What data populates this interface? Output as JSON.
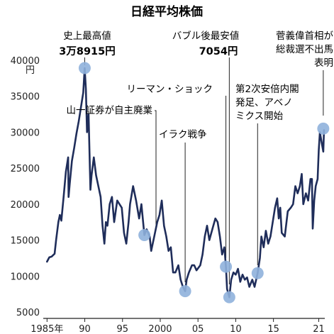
{
  "chart_data": {
    "type": "line",
    "title": "日経平均株価",
    "ylabel": "円",
    "ylim": [
      5000,
      40000
    ],
    "xlim": [
      1984.5,
      2021.8
    ],
    "yticks": [
      5000,
      10000,
      15000,
      20000,
      25000,
      30000,
      35000,
      40000
    ],
    "xticks": [
      {
        "x": 1985,
        "label": "1985年"
      },
      {
        "x": 1990,
        "label": "90"
      },
      {
        "x": 1995,
        "label": "95"
      },
      {
        "x": 2000,
        "label": "2000"
      },
      {
        "x": 2005,
        "label": "05"
      },
      {
        "x": 2010,
        "label": "10"
      },
      {
        "x": 2015,
        "label": "15"
      },
      {
        "x": 2021,
        "label": "21"
      }
    ],
    "grid": false,
    "line_color": "#1f2d5a",
    "marker_color": "#8fb1dc",
    "series": [
      {
        "points": [
          [
            1985.0,
            12000
          ],
          [
            1985.3,
            12600
          ],
          [
            1985.6,
            12700
          ],
          [
            1986.0,
            13100
          ],
          [
            1986.2,
            15000
          ],
          [
            1986.5,
            17500
          ],
          [
            1986.7,
            18500
          ],
          [
            1986.9,
            17700
          ],
          [
            1987.2,
            21000
          ],
          [
            1987.5,
            24500
          ],
          [
            1987.8,
            26500
          ],
          [
            1987.85,
            21000
          ],
          [
            1988.0,
            22800
          ],
          [
            1988.3,
            26000
          ],
          [
            1988.6,
            27800
          ],
          [
            1988.9,
            29800
          ],
          [
            1989.2,
            31500
          ],
          [
            1989.5,
            33500
          ],
          [
            1989.8,
            35500
          ],
          [
            1989.99,
            38915
          ],
          [
            1990.15,
            36000
          ],
          [
            1990.3,
            30000
          ],
          [
            1990.5,
            32500
          ],
          [
            1990.75,
            22000
          ],
          [
            1990.9,
            24000
          ],
          [
            1991.2,
            26500
          ],
          [
            1991.5,
            24000
          ],
          [
            1991.8,
            22500
          ],
          [
            1992.1,
            21000
          ],
          [
            1992.35,
            17000
          ],
          [
            1992.6,
            14500
          ],
          [
            1992.8,
            17500
          ],
          [
            1993.0,
            17000
          ],
          [
            1993.3,
            20000
          ],
          [
            1993.6,
            21000
          ],
          [
            1993.9,
            17500
          ],
          [
            1994.3,
            20500
          ],
          [
            1994.6,
            20000
          ],
          [
            1994.9,
            19500
          ],
          [
            1995.2,
            16000
          ],
          [
            1995.5,
            14500
          ],
          [
            1995.8,
            17500
          ],
          [
            1996.0,
            20000
          ],
          [
            1996.4,
            22500
          ],
          [
            1996.8,
            20500
          ],
          [
            1997.2,
            18000
          ],
          [
            1997.5,
            20000
          ],
          [
            1997.9,
            15700
          ],
          [
            1998.2,
            16500
          ],
          [
            1998.6,
            15500
          ],
          [
            1998.8,
            13500
          ],
          [
            1999.2,
            15500
          ],
          [
            1999.6,
            17500
          ],
          [
            1999.9,
            18500
          ],
          [
            2000.2,
            20500
          ],
          [
            2000.5,
            17000
          ],
          [
            2000.8,
            15500
          ],
          [
            2001.1,
            13500
          ],
          [
            2001.4,
            14000
          ],
          [
            2001.7,
            10500
          ],
          [
            2002.0,
            10500
          ],
          [
            2002.4,
            11500
          ],
          [
            2002.7,
            9500
          ],
          [
            2003.0,
            8500
          ],
          [
            2003.3,
            7900
          ],
          [
            2003.5,
            9500
          ],
          [
            2003.8,
            10500
          ],
          [
            2004.2,
            11500
          ],
          [
            2004.5,
            11500
          ],
          [
            2004.8,
            10800
          ],
          [
            2005.3,
            11500
          ],
          [
            2005.6,
            13000
          ],
          [
            2005.9,
            15500
          ],
          [
            2006.2,
            17000
          ],
          [
            2006.5,
            15000
          ],
          [
            2006.9,
            16500
          ],
          [
            2007.3,
            18000
          ],
          [
            2007.6,
            17500
          ],
          [
            2007.9,
            15500
          ],
          [
            2008.2,
            13000
          ],
          [
            2008.5,
            14000
          ],
          [
            2008.7,
            11300
          ],
          [
            2008.85,
            8200
          ],
          [
            2009.15,
            7054
          ],
          [
            2009.4,
            9500
          ],
          [
            2009.7,
            10500
          ],
          [
            2010.0,
            10200
          ],
          [
            2010.3,
            11000
          ],
          [
            2010.6,
            9200
          ],
          [
            2010.9,
            10200
          ],
          [
            2011.2,
            9500
          ],
          [
            2011.5,
            9800
          ],
          [
            2011.8,
            8500
          ],
          [
            2012.2,
            9500
          ],
          [
            2012.5,
            8500
          ],
          [
            2012.9,
            10400
          ],
          [
            2013.2,
            12500
          ],
          [
            2013.4,
            15500
          ],
          [
            2013.7,
            14000
          ],
          [
            2013.99,
            16300
          ],
          [
            2014.3,
            14500
          ],
          [
            2014.6,
            15500
          ],
          [
            2014.9,
            17500
          ],
          [
            2015.2,
            19500
          ],
          [
            2015.5,
            20800
          ],
          [
            2015.7,
            18000
          ],
          [
            2015.9,
            19500
          ],
          [
            2016.1,
            16000
          ],
          [
            2016.5,
            15500
          ],
          [
            2016.9,
            19000
          ],
          [
            2017.3,
            19500
          ],
          [
            2017.6,
            20000
          ],
          [
            2017.9,
            22500
          ],
          [
            2018.2,
            21500
          ],
          [
            2018.5,
            22500
          ],
          [
            2018.75,
            24200
          ],
          [
            2018.95,
            20000
          ],
          [
            2019.3,
            21500
          ],
          [
            2019.6,
            20500
          ],
          [
            2019.9,
            23500
          ],
          [
            2020.1,
            23500
          ],
          [
            2020.2,
            16600
          ],
          [
            2020.4,
            20500
          ],
          [
            2020.6,
            22500
          ],
          [
            2020.85,
            23500
          ],
          [
            2021.0,
            27500
          ],
          [
            2021.15,
            30000
          ],
          [
            2021.4,
            28500
          ],
          [
            2021.6,
            27300
          ],
          [
            2021.7,
            30300
          ]
        ]
      }
    ],
    "annotations": [
      {
        "x": 1989.99,
        "y": 38915,
        "label_lines": [
          "史上最高値"
        ],
        "value_label": "3万8915円"
      },
      {
        "x": 2009.15,
        "y": 7054,
        "label_lines": [
          "バブル後最安値"
        ],
        "value_label": "7054円"
      },
      {
        "x": 1997.9,
        "y": 15700,
        "label_lines": [
          "山一証券が自主廃業"
        ]
      },
      {
        "x": 2003.3,
        "y": 7900,
        "label_lines": [
          "イラク戦争"
        ]
      },
      {
        "x": 2008.7,
        "y": 11300,
        "label_lines": [
          "リーマン・ショック"
        ]
      },
      {
        "x": 2012.9,
        "y": 10400,
        "label_lines": [
          "第2次安倍内閣",
          "発足、アベノ",
          "ミクス開始"
        ]
      },
      {
        "x": 2021.6,
        "y": 30500,
        "label_lines": [
          "菅義偉首相が",
          "総裁選不出馬",
          "表明"
        ]
      }
    ]
  }
}
